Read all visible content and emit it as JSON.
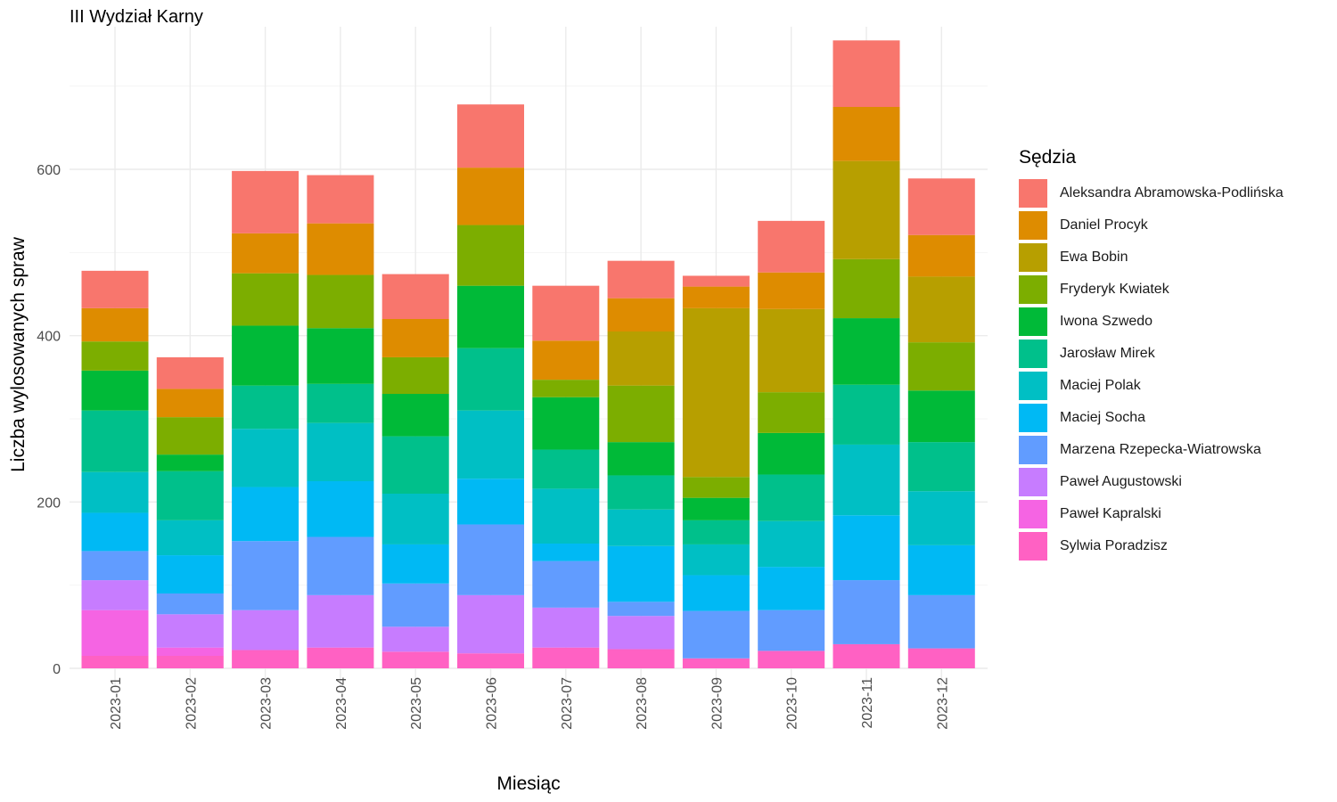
{
  "chart_data": {
    "type": "bar",
    "stacked": true,
    "title": "III Wydział Karny",
    "xlabel": "Miesiąc",
    "ylabel": "Liczba wylosowanych spraw",
    "ylim": [
      0,
      770
    ],
    "yticks": [
      0,
      200,
      400,
      600
    ],
    "grid": true,
    "legend_title": "Sędzia",
    "legend_position": "right",
    "categories": [
      "2023-01",
      "2023-02",
      "2023-03",
      "2023-04",
      "2023-05",
      "2023-06",
      "2023-07",
      "2023-08",
      "2023-09",
      "2023-10",
      "2023-11",
      "2023-12"
    ],
    "series": [
      {
        "name": "Sylwia Poradzisz",
        "color": "#FF61C3",
        "values": [
          15,
          15,
          22,
          25,
          20,
          18,
          25,
          23,
          12,
          21,
          29,
          24
        ]
      },
      {
        "name": "Paweł Kapralski",
        "color": "#F564E3",
        "values": [
          55,
          10,
          0,
          0,
          0,
          0,
          0,
          0,
          0,
          0,
          0,
          0
        ]
      },
      {
        "name": "Paweł Augustowski",
        "color": "#C77CFF",
        "values": [
          36,
          40,
          48,
          63,
          30,
          70,
          48,
          40,
          0,
          0,
          0,
          0
        ]
      },
      {
        "name": "Marzena Rzepecka-Wiatrowska",
        "color": "#619CFF",
        "values": [
          35,
          25,
          83,
          70,
          52,
          85,
          56,
          17,
          57,
          49,
          77,
          64
        ]
      },
      {
        "name": "Maciej Socha",
        "color": "#00B9F4",
        "values": [
          46,
          46,
          65,
          67,
          47,
          55,
          21,
          67,
          43,
          52,
          78,
          60
        ]
      },
      {
        "name": "Maciej Polak",
        "color": "#00BFC4",
        "values": [
          49,
          42,
          70,
          70,
          61,
          82,
          66,
          44,
          37,
          55,
          85,
          65
        ]
      },
      {
        "name": "Jarosław Mirek",
        "color": "#00C08B",
        "values": [
          74,
          59,
          52,
          47,
          69,
          75,
          47,
          41,
          29,
          56,
          72,
          59
        ]
      },
      {
        "name": "Iwona Szwedo",
        "color": "#00BA38",
        "values": [
          48,
          20,
          72,
          67,
          51,
          75,
          63,
          40,
          27,
          50,
          80,
          62
        ]
      },
      {
        "name": "Fryderyk Kwiatek",
        "color": "#7CAE00",
        "values": [
          35,
          45,
          63,
          64,
          44,
          73,
          21,
          68,
          25,
          49,
          71,
          58
        ]
      },
      {
        "name": "Ewa Bobin",
        "color": "#B79F00",
        "values": [
          0,
          0,
          0,
          0,
          0,
          0,
          0,
          65,
          203,
          100,
          118,
          79
        ]
      },
      {
        "name": "Daniel Procyk",
        "color": "#DE8C00",
        "values": [
          40,
          34,
          48,
          62,
          46,
          69,
          47,
          40,
          26,
          44,
          65,
          50
        ]
      },
      {
        "name": "Aleksandra Abramowska-Podlińska",
        "color": "#F8766D",
        "values": [
          45,
          38,
          75,
          58,
          54,
          76,
          66,
          45,
          13,
          62,
          80,
          68
        ]
      }
    ]
  }
}
